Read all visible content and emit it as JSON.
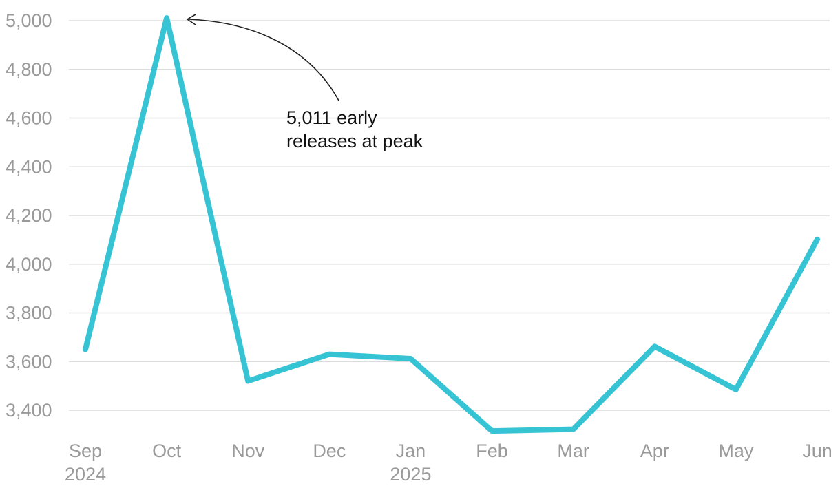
{
  "chart_data": {
    "type": "line",
    "title": "",
    "xlabel": "",
    "ylabel": "",
    "categories": [
      "Sep",
      "Oct",
      "Nov",
      "Dec",
      "Jan",
      "Feb",
      "Mar",
      "Apr",
      "May",
      "Jun"
    ],
    "category_sublabels": [
      "2024",
      "",
      "",
      "",
      "2025",
      "",
      "",
      "",
      "",
      ""
    ],
    "series": [
      {
        "name": "Early releases",
        "values": [
          3650,
          5011,
          3520,
          3630,
          3612,
          3315,
          3322,
          3662,
          3485,
          4102
        ],
        "color": "#36c3d4"
      }
    ],
    "y_ticks": [
      "3,400",
      "3,600",
      "3,800",
      "4,000",
      "4,200",
      "4,400",
      "4,600",
      "4,800",
      "5,000"
    ],
    "y_tick_values": [
      3400,
      3600,
      3800,
      4000,
      4200,
      4400,
      4600,
      4800,
      5000
    ],
    "ylim": [
      3280,
      5060
    ],
    "grid": true,
    "annotation": {
      "lines": [
        "5,011 early",
        "releases at peak"
      ],
      "target_category": "Oct",
      "target_value": 5011
    }
  }
}
